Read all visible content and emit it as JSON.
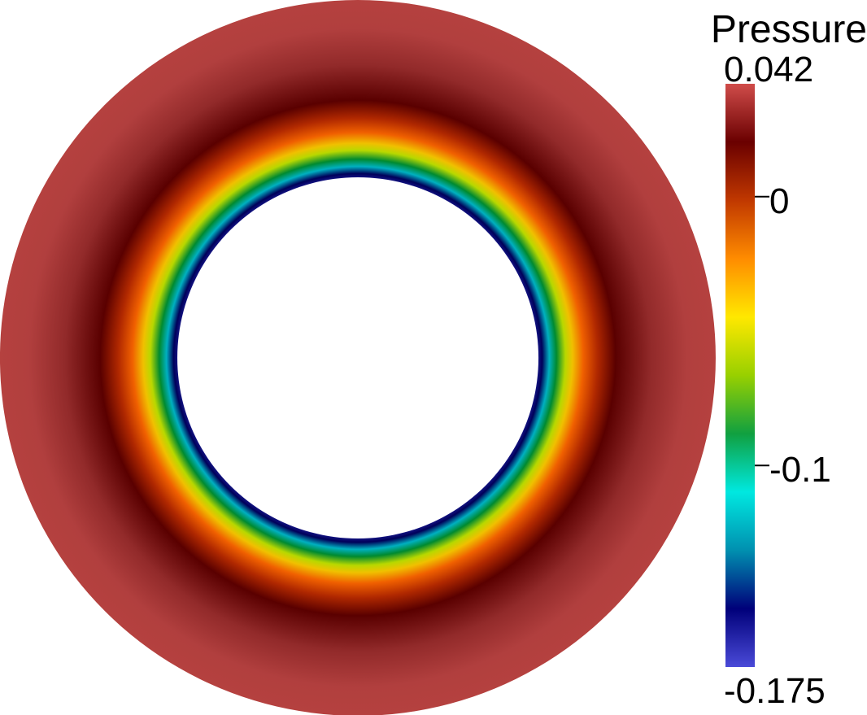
{
  "chart_data": {
    "type": "colormap",
    "title": "Pressure",
    "ylim": [
      -0.175,
      0.042
    ],
    "yticks": [
      -0.175,
      -0.1,
      0,
      0.042
    ],
    "colors": [
      "#4a4ad8",
      "#00007a",
      "#0090b0",
      "#00e8e0",
      "#10a040",
      "#98d000",
      "#ffe800",
      "#ff8c00",
      "#c03800",
      "#6a0000",
      "#d04c4a"
    ]
  }
}
